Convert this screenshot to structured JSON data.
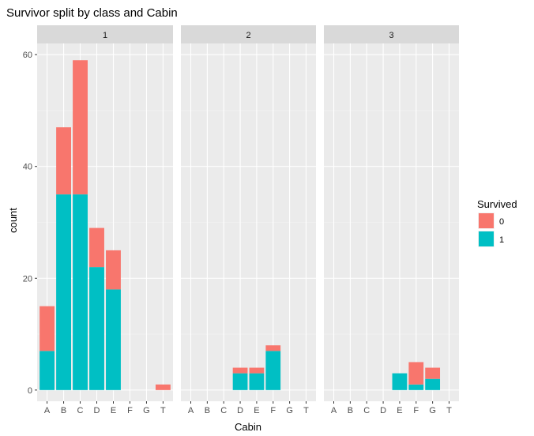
{
  "chart_data": {
    "type": "bar",
    "stacked": true,
    "title": "Survivor split by class and Cabin",
    "xlabel": "Cabin",
    "ylabel": "count",
    "ylim": [
      -2,
      62
    ],
    "yticks": [
      0,
      20,
      40,
      60
    ],
    "categories": [
      "A",
      "B",
      "C",
      "D",
      "E",
      "F",
      "G",
      "T"
    ],
    "legend": {
      "title": "Survived",
      "position": "right",
      "entries": [
        {
          "label": "0",
          "color": "#F8766D"
        },
        {
          "label": "1",
          "color": "#00BFC4"
        }
      ]
    },
    "facets": [
      {
        "label": "1",
        "series": [
          {
            "name": "0",
            "values": [
              8,
              12,
              24,
              7,
              7,
              0,
              0,
              1
            ]
          },
          {
            "name": "1",
            "values": [
              7,
              35,
              35,
              22,
              18,
              0,
              0,
              0
            ]
          }
        ]
      },
      {
        "label": "2",
        "series": [
          {
            "name": "0",
            "values": [
              0,
              0,
              0,
              1,
              1,
              1,
              0,
              0
            ]
          },
          {
            "name": "1",
            "values": [
              0,
              0,
              0,
              3,
              3,
              7,
              0,
              0
            ]
          }
        ]
      },
      {
        "label": "3",
        "series": [
          {
            "name": "0",
            "values": [
              0,
              0,
              0,
              0,
              0,
              4,
              2,
              0
            ]
          },
          {
            "name": "1",
            "values": [
              0,
              0,
              0,
              0,
              3,
              1,
              2,
              0
            ]
          }
        ]
      }
    ]
  }
}
